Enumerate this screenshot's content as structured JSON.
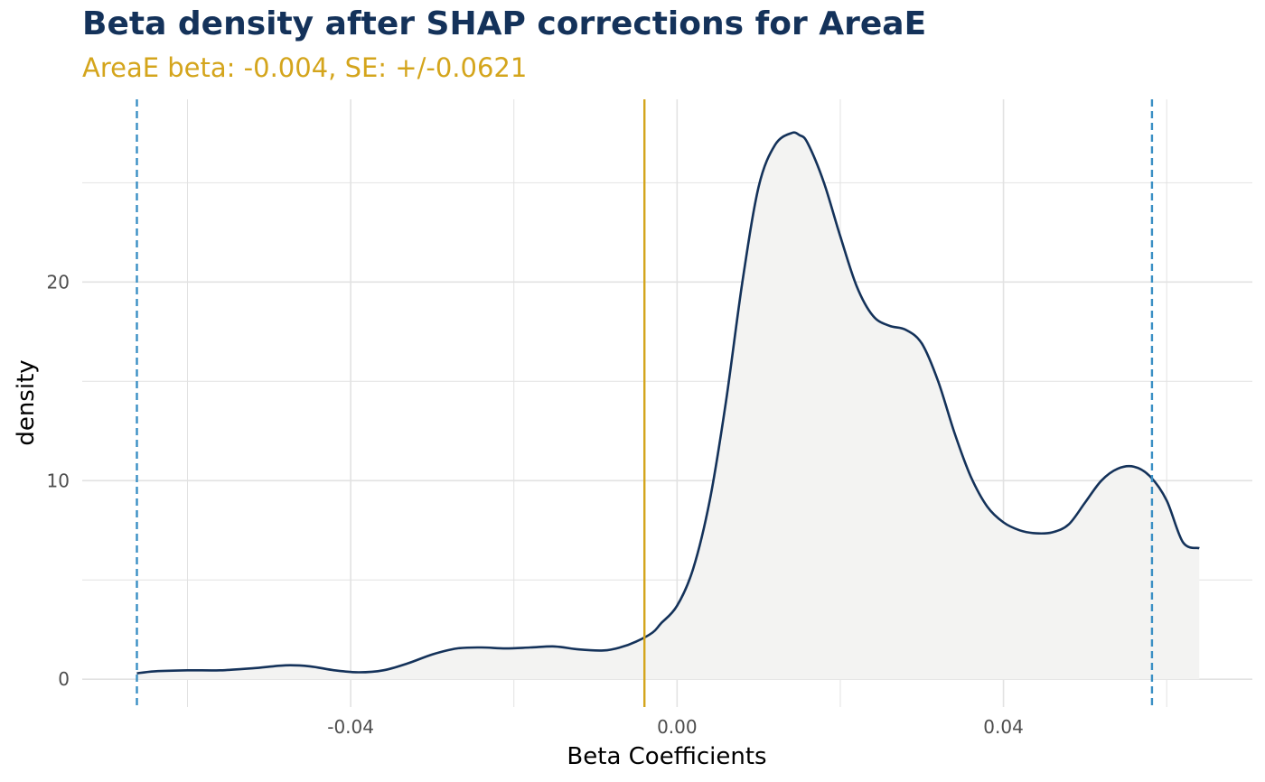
{
  "colors": {
    "title": "#14325a",
    "subtitle": "#d4a51c",
    "density_line": "#14325a",
    "density_fill": "#f3f3f2",
    "estimate_line": "#d4a51c",
    "ci_lines": "#3a8fc4",
    "grid": "#e2e2e2"
  },
  "chart_data": {
    "type": "area",
    "title": "Beta density after SHAP corrections for AreaE",
    "subtitle": "AreaE beta: -0.004, SE: +/-0.0621",
    "xlabel": "Beta Coefficients",
    "ylabel": "density",
    "xlim": [
      -0.0729,
      0.0705
    ],
    "ylim": [
      -1.4,
      29.2
    ],
    "x_ticks": [
      {
        "value": -0.04,
        "label": "-0.04"
      },
      {
        "value": 0.0,
        "label": "0.00"
      },
      {
        "value": 0.04,
        "label": "0.04"
      }
    ],
    "y_ticks": [
      {
        "value": 0,
        "label": "0"
      },
      {
        "value": 10,
        "label": "10"
      },
      {
        "value": 20,
        "label": "20"
      }
    ],
    "x_minor_gridlines": [
      -0.06,
      -0.02,
      0.02,
      0.06
    ],
    "y_minor_gridlines": [
      5,
      15,
      25
    ],
    "grid": true,
    "legend": "none",
    "vlines": [
      {
        "value": -0.004,
        "style": "solid",
        "role": "estimate"
      },
      {
        "value": -0.0662,
        "style": "dashed",
        "role": "ci-lower"
      },
      {
        "value": 0.0582,
        "style": "dashed",
        "role": "ci-upper"
      }
    ],
    "series": [
      {
        "x": [
          -0.0662,
          -0.064,
          -0.06,
          -0.056,
          -0.052,
          -0.048,
          -0.045,
          -0.042,
          -0.039,
          -0.036,
          -0.033,
          -0.03,
          -0.027,
          -0.024,
          -0.021,
          -0.018,
          -0.015,
          -0.012,
          -0.009,
          -0.007,
          -0.005,
          -0.003,
          -0.002,
          0.0,
          0.002,
          0.004,
          0.006,
          0.008,
          0.01,
          0.012,
          0.014,
          0.015,
          0.016,
          0.018,
          0.02,
          0.022,
          0.024,
          0.026,
          0.028,
          0.03,
          0.032,
          0.034,
          0.036,
          0.038,
          0.04,
          0.042,
          0.044,
          0.046,
          0.048,
          0.05,
          0.052,
          0.054,
          0.056,
          0.058,
          0.06,
          0.062,
          0.064
        ],
        "values": [
          0.3,
          0.4,
          0.45,
          0.45,
          0.55,
          0.7,
          0.65,
          0.45,
          0.35,
          0.45,
          0.8,
          1.25,
          1.55,
          1.6,
          1.55,
          1.6,
          1.65,
          1.5,
          1.45,
          1.6,
          1.9,
          2.35,
          2.8,
          3.7,
          5.6,
          9.0,
          14.0,
          20.0,
          24.8,
          26.9,
          27.5,
          27.4,
          27.0,
          25.0,
          22.3,
          19.8,
          18.3,
          17.8,
          17.6,
          16.9,
          15.0,
          12.4,
          10.2,
          8.7,
          7.9,
          7.5,
          7.35,
          7.4,
          7.8,
          8.9,
          10.0,
          10.6,
          10.7,
          10.2,
          9.0,
          6.9,
          6.6
        ]
      }
    ]
  }
}
